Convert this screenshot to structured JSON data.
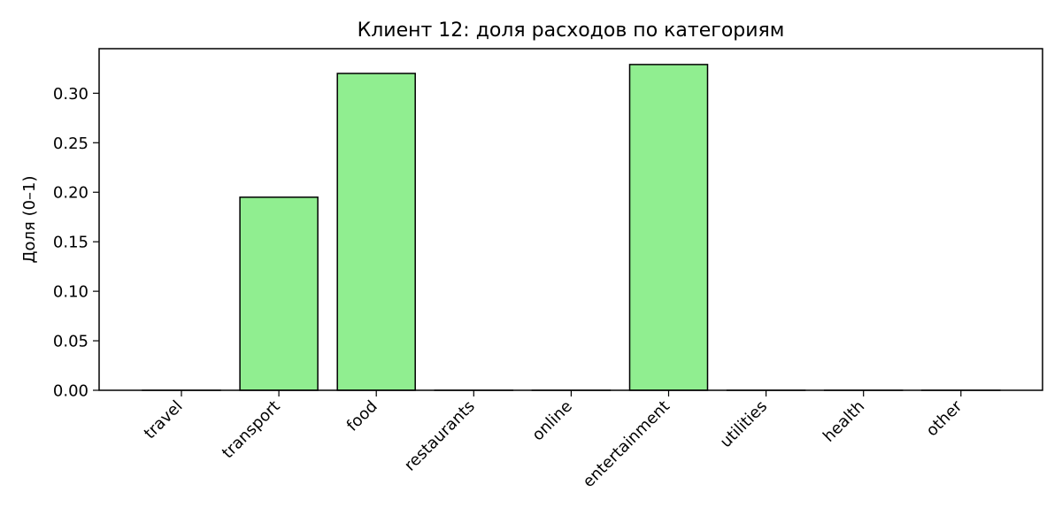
{
  "chart_data": {
    "type": "bar",
    "title": "Клиент 12: доля расходов по категориям",
    "xlabel": "",
    "ylabel": "Доля (0–1)",
    "categories": [
      "travel",
      "transport",
      "food",
      "restaurants",
      "online",
      "entertainment",
      "utilities",
      "health",
      "other"
    ],
    "values": [
      0.0,
      0.195,
      0.32,
      0.0,
      0.0,
      0.329,
      0.0,
      0.0,
      0.0
    ],
    "yticks": [
      "0.00",
      "0.05",
      "0.10",
      "0.15",
      "0.20",
      "0.25",
      "0.30"
    ],
    "ylim": [
      0,
      0.345
    ],
    "grid": false,
    "legend": "none",
    "bar_color": "#90ee90",
    "bar_edge_color": "#000000"
  }
}
